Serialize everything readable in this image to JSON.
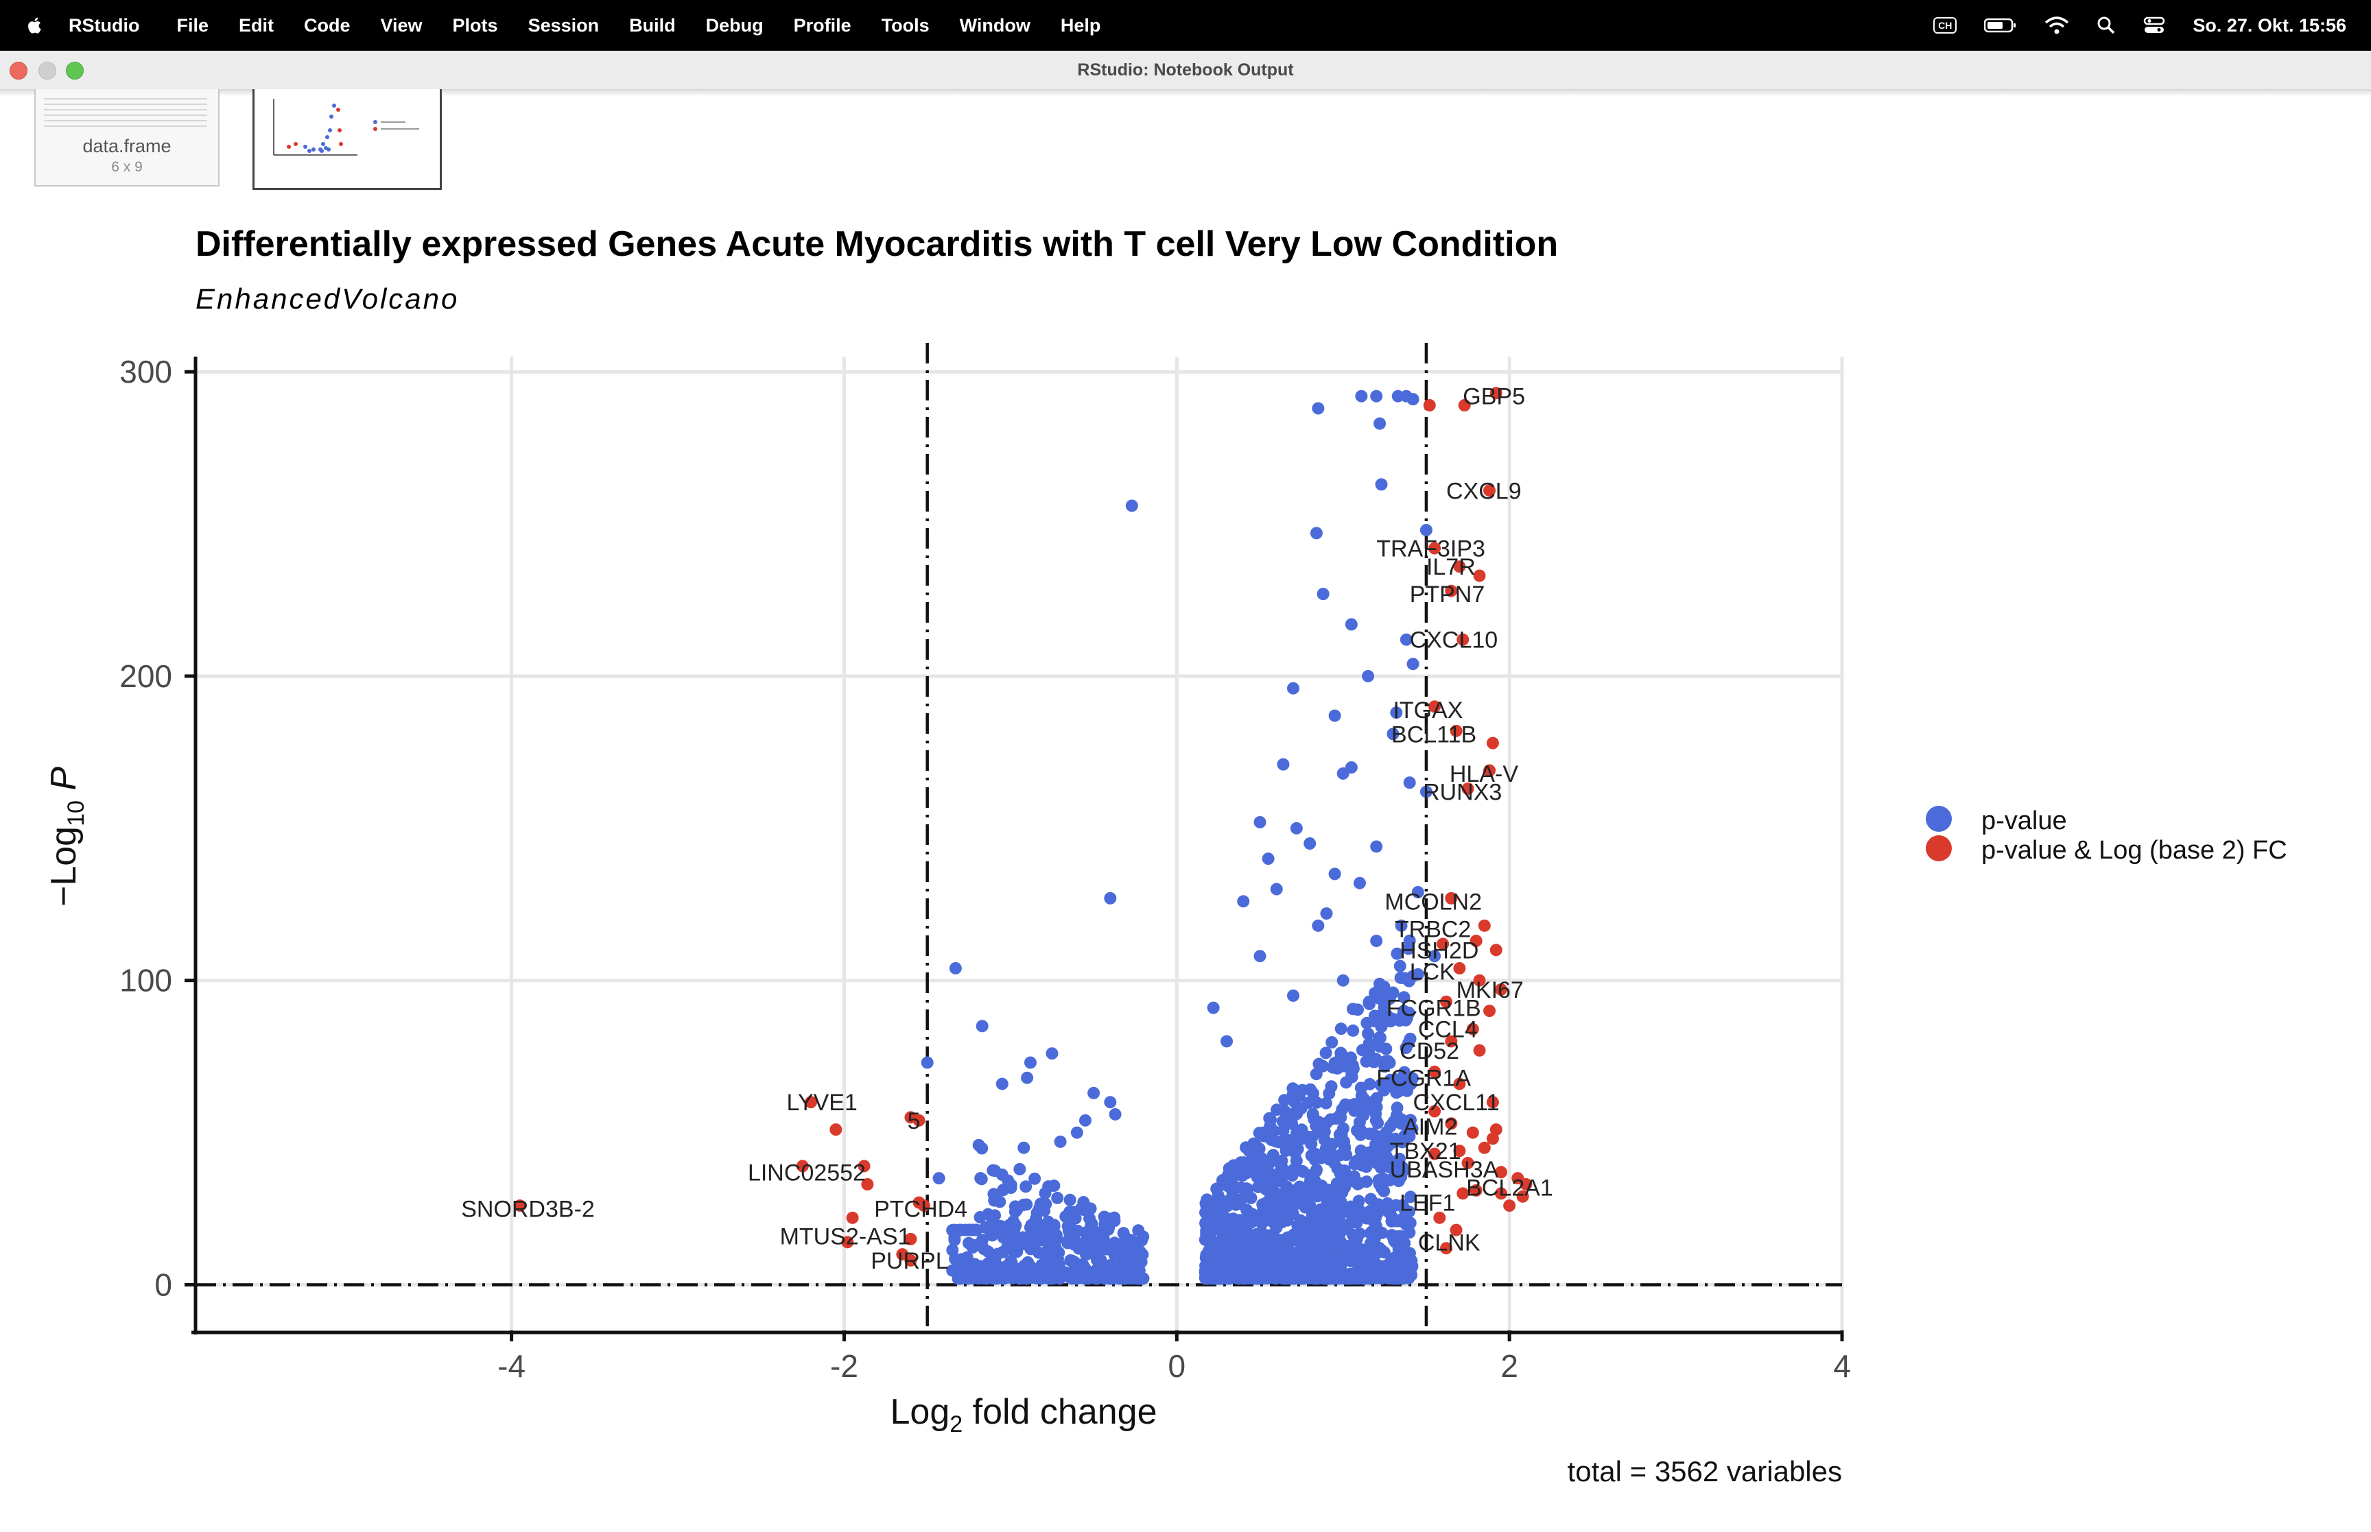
{
  "menubar": {
    "app_name": "RStudio",
    "items": [
      "File",
      "Edit",
      "Code",
      "View",
      "Plots",
      "Session",
      "Build",
      "Debug",
      "Profile",
      "Tools",
      "Window",
      "Help"
    ],
    "keyboard_label": "CH",
    "clock": "So. 27. Okt.  15:56"
  },
  "window": {
    "title": "RStudio: Notebook Output"
  },
  "thumbnails": [
    {
      "label": "data.frame",
      "sub": "6 x 9"
    },
    {
      "label": ""
    }
  ],
  "chart_data": {
    "type": "scatter",
    "title": "Differentially expressed Genes Acute Myocarditis with T cell Very Low Condition",
    "subtitle": "EnhancedVolcano",
    "xlabel": "Log2 fold change",
    "ylabel": "-Log10 P",
    "xlim": [
      -5.9,
      4
    ],
    "ylim": [
      -15,
      305
    ],
    "x_ticks": [
      -4,
      -2,
      0,
      2,
      4
    ],
    "y_ticks": [
      0,
      100,
      200,
      300
    ],
    "grid": true,
    "thresholds": {
      "fc_cutoff": 1.5,
      "p_cutoff": 0
    },
    "caption": "total = 3562 variables",
    "legend": {
      "placement": "right",
      "entries": [
        {
          "name": "p-value",
          "color": "#4a6bd9"
        },
        {
          "name": "p-value & Log (base 2) FC",
          "color": "#d93a2b"
        }
      ]
    },
    "colors": {
      "blue": "#4a6bd9",
      "red": "#d93a2b"
    },
    "points_blue": [
      [
        -0.27,
        256
      ],
      [
        -0.4,
        127
      ],
      [
        -1.33,
        104
      ],
      [
        -1.17,
        85
      ],
      [
        -1.5,
        73
      ],
      [
        -0.75,
        76
      ],
      [
        -0.88,
        73
      ],
      [
        -0.9,
        68
      ],
      [
        -1.05,
        66
      ],
      [
        -0.5,
        63
      ],
      [
        -0.4,
        60
      ],
      [
        -0.37,
        56
      ],
      [
        -0.55,
        54
      ],
      [
        -0.6,
        50
      ],
      [
        -0.7,
        47
      ],
      [
        -0.92,
        45
      ],
      [
        -1.18,
        35
      ],
      [
        -1.43,
        35
      ],
      [
        0.85,
        288
      ],
      [
        1.11,
        292
      ],
      [
        1.2,
        292
      ],
      [
        1.33,
        292
      ],
      [
        1.38,
        292
      ],
      [
        1.42,
        291
      ],
      [
        1.22,
        283
      ],
      [
        1.23,
        263
      ],
      [
        1.5,
        248
      ],
      [
        0.84,
        247
      ],
      [
        0.88,
        227
      ],
      [
        1.05,
        217
      ],
      [
        1.38,
        212
      ],
      [
        1.42,
        204
      ],
      [
        1.15,
        200
      ],
      [
        0.7,
        196
      ],
      [
        0.95,
        187
      ],
      [
        1.32,
        188
      ],
      [
        1.3,
        181
      ],
      [
        0.64,
        171
      ],
      [
        1.0,
        168
      ],
      [
        1.05,
        170
      ],
      [
        1.4,
        165
      ],
      [
        1.5,
        162
      ],
      [
        0.5,
        152
      ],
      [
        0.72,
        150
      ],
      [
        1.2,
        144
      ],
      [
        0.95,
        135
      ],
      [
        0.6,
        130
      ],
      [
        1.1,
        132
      ],
      [
        1.45,
        129
      ],
      [
        0.4,
        126
      ],
      [
        0.85,
        118
      ],
      [
        1.2,
        113
      ],
      [
        0.5,
        108
      ],
      [
        0.22,
        91
      ],
      [
        1.55,
        108
      ],
      [
        0.3,
        80
      ],
      [
        0.7,
        95
      ],
      [
        1.0,
        100
      ],
      [
        1.3,
        96
      ],
      [
        1.45,
        102
      ],
      [
        0.9,
        122
      ],
      [
        1.35,
        118
      ],
      [
        0.55,
        140
      ],
      [
        0.8,
        145
      ]
    ],
    "points_red": [
      [
        1.52,
        289
      ],
      [
        1.73,
        289
      ],
      [
        1.92,
        293
      ],
      [
        1.88,
        261
      ],
      [
        1.55,
        242
      ],
      [
        1.7,
        236
      ],
      [
        1.82,
        233
      ],
      [
        1.65,
        228
      ],
      [
        1.72,
        212
      ],
      [
        1.55,
        190
      ],
      [
        1.68,
        182
      ],
      [
        1.9,
        178
      ],
      [
        1.88,
        169
      ],
      [
        1.75,
        163
      ],
      [
        1.65,
        127
      ],
      [
        1.85,
        118
      ],
      [
        1.6,
        112
      ],
      [
        1.8,
        113
      ],
      [
        1.92,
        110
      ],
      [
        1.7,
        104
      ],
      [
        1.82,
        100
      ],
      [
        1.95,
        97
      ],
      [
        1.88,
        90
      ],
      [
        1.62,
        93
      ],
      [
        1.65,
        80
      ],
      [
        1.78,
        84
      ],
      [
        1.82,
        77
      ],
      [
        1.55,
        70
      ],
      [
        1.7,
        66
      ],
      [
        1.9,
        60
      ],
      [
        1.55,
        57
      ],
      [
        1.65,
        53
      ],
      [
        1.78,
        50
      ],
      [
        1.92,
        51
      ],
      [
        1.9,
        48
      ],
      [
        1.55,
        43
      ],
      [
        1.7,
        44
      ],
      [
        1.85,
        45
      ],
      [
        2.05,
        35
      ],
      [
        2.1,
        33
      ],
      [
        1.72,
        30
      ],
      [
        1.8,
        31
      ],
      [
        1.95,
        30
      ],
      [
        2.0,
        26
      ],
      [
        1.58,
        22
      ],
      [
        1.68,
        18
      ],
      [
        1.62,
        12
      ],
      [
        -3.95,
        26
      ],
      [
        -2.2,
        60
      ],
      [
        -2.05,
        51
      ],
      [
        -1.6,
        55
      ],
      [
        -1.55,
        54
      ],
      [
        -2.25,
        39
      ],
      [
        -1.88,
        39
      ],
      [
        -1.86,
        33
      ],
      [
        -1.52,
        26
      ],
      [
        -1.95,
        22
      ],
      [
        -1.98,
        14
      ],
      [
        -1.6,
        15
      ],
      [
        -1.65,
        10
      ],
      [
        -1.6,
        8
      ],
      [
        -1.55,
        27
      ],
      [
        1.75,
        40
      ],
      [
        1.95,
        37
      ],
      [
        2.08,
        29
      ]
    ],
    "labels": [
      {
        "text": "GBP5",
        "x": 1.72,
        "y": 292,
        "anchor": "start"
      },
      {
        "text": "CXCL9",
        "x": 1.62,
        "y": 261,
        "anchor": "start"
      },
      {
        "text": "TRAF3IP3",
        "x": 1.2,
        "y": 242,
        "anchor": "start"
      },
      {
        "text": "IL7R",
        "x": 1.5,
        "y": 236,
        "anchor": "start"
      },
      {
        "text": "PTPN7",
        "x": 1.4,
        "y": 227,
        "anchor": "start"
      },
      {
        "text": "CXCL10",
        "x": 1.4,
        "y": 212,
        "anchor": "start"
      },
      {
        "text": "ITGAX",
        "x": 1.3,
        "y": 189,
        "anchor": "start"
      },
      {
        "text": "BCL11B",
        "x": 1.29,
        "y": 181,
        "anchor": "start"
      },
      {
        "text": "HLA-V",
        "x": 1.64,
        "y": 168,
        "anchor": "start"
      },
      {
        "text": "RUNX3",
        "x": 1.48,
        "y": 162,
        "anchor": "start"
      },
      {
        "text": "MCOLN2",
        "x": 1.25,
        "y": 126,
        "anchor": "start"
      },
      {
        "text": "TRBC2",
        "x": 1.31,
        "y": 117,
        "anchor": "start"
      },
      {
        "text": "HSH2D",
        "x": 1.34,
        "y": 110,
        "anchor": "start"
      },
      {
        "text": "LCK",
        "x": 1.4,
        "y": 103,
        "anchor": "start"
      },
      {
        "text": "MKI67",
        "x": 1.68,
        "y": 97,
        "anchor": "start"
      },
      {
        "text": "FCGR1B",
        "x": 1.26,
        "y": 91,
        "anchor": "start"
      },
      {
        "text": "CCL4",
        "x": 1.45,
        "y": 84,
        "anchor": "start"
      },
      {
        "text": "CD52",
        "x": 1.34,
        "y": 77,
        "anchor": "start"
      },
      {
        "text": "FCGR1A",
        "x": 1.2,
        "y": 68,
        "anchor": "start"
      },
      {
        "text": "CXCL11",
        "x": 1.42,
        "y": 60,
        "anchor": "start"
      },
      {
        "text": "AIM2",
        "x": 1.36,
        "y": 52,
        "anchor": "start"
      },
      {
        "text": "TBX21",
        "x": 1.28,
        "y": 44,
        "anchor": "start"
      },
      {
        "text": "UBASH3A",
        "x": 1.28,
        "y": 38,
        "anchor": "start"
      },
      {
        "text": "BCL2A1",
        "x": 1.74,
        "y": 32,
        "anchor": "start"
      },
      {
        "text": "LEF1",
        "x": 1.34,
        "y": 27,
        "anchor": "start"
      },
      {
        "text": "CLNK",
        "x": 1.45,
        "y": 14,
        "anchor": "start"
      },
      {
        "text": "SNORD3B-2",
        "x": -3.5,
        "y": 25,
        "anchor": "end"
      },
      {
        "text": "LYVE1",
        "x": -1.92,
        "y": 60,
        "anchor": "end"
      },
      {
        "text": "5",
        "x": -1.62,
        "y": 54,
        "anchor": "start"
      },
      {
        "text": "LINC02552",
        "x": -1.87,
        "y": 37,
        "anchor": "end"
      },
      {
        "text": "PTCHD4",
        "x": -1.82,
        "y": 25,
        "anchor": "start"
      },
      {
        "text": "MTUS2-AS1",
        "x": -1.6,
        "y": 16,
        "anchor": "end"
      },
      {
        "text": "PURPL",
        "x": -1.84,
        "y": 8,
        "anchor": "start"
      }
    ]
  }
}
